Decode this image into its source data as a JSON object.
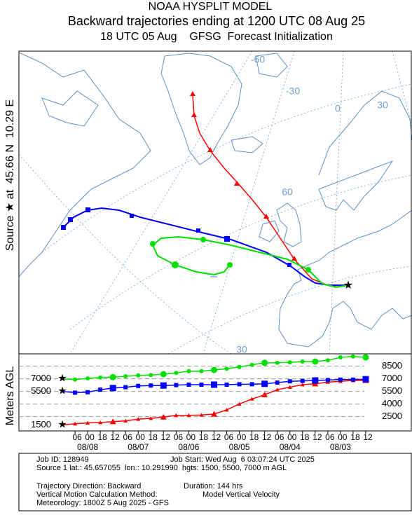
{
  "header": {
    "title1": "NOAA HYSPLIT MODEL",
    "title2": "Backward trajectories ending at 1200 UTC 08 Aug 25",
    "title3": "18 UTC 05 Aug    GFSG  Forecast Initialization"
  },
  "map": {
    "source_label": "Source ★ at  45.66 N  10.29 E",
    "grid_labels": [
      "-60",
      "-30",
      "0",
      "30",
      "60",
      "30"
    ]
  },
  "chart_data": {
    "type": "line",
    "ylabel": "Meters AGL",
    "x": [
      0,
      6,
      12,
      18,
      24,
      30,
      36,
      42,
      48,
      54,
      60,
      66,
      72,
      78,
      84,
      90,
      96,
      102,
      108,
      114,
      120,
      126,
      132,
      138,
      144
    ],
    "xlim": [
      -3,
      146
    ],
    "xticks": [
      {
        "value": 6,
        "label": "06"
      },
      {
        "value": 12,
        "label": "00"
      },
      {
        "value": 18,
        "label": "18"
      },
      {
        "value": 24,
        "label": "12"
      },
      {
        "value": 30,
        "label": "06"
      },
      {
        "value": 36,
        "label": "00"
      },
      {
        "value": 42,
        "label": "18"
      },
      {
        "value": 48,
        "label": "12"
      },
      {
        "value": 54,
        "label": "06"
      },
      {
        "value": 60,
        "label": "00"
      },
      {
        "value": 66,
        "label": "18"
      },
      {
        "value": 72,
        "label": "12"
      },
      {
        "value": 78,
        "label": "06"
      },
      {
        "value": 84,
        "label": "00"
      },
      {
        "value": 90,
        "label": "18"
      },
      {
        "value": 96,
        "label": "12"
      },
      {
        "value": 102,
        "label": "06"
      },
      {
        "value": 108,
        "label": "00"
      },
      {
        "value": 114,
        "label": "18"
      },
      {
        "value": 120,
        "label": "12"
      },
      {
        "value": 126,
        "label": "06"
      },
      {
        "value": 132,
        "label": "00"
      },
      {
        "value": 138,
        "label": "18"
      },
      {
        "value": 144,
        "label": "12"
      }
    ],
    "date_ticks": [
      {
        "value": 12,
        "label": "08/08"
      },
      {
        "value": 36,
        "label": "08/07"
      },
      {
        "value": 60,
        "label": "08/06"
      },
      {
        "value": 84,
        "label": "08/05"
      },
      {
        "value": 108,
        "label": "08/04"
      },
      {
        "value": 132,
        "label": "08/03"
      }
    ],
    "ylim": [
      800,
      9800
    ],
    "yticks": [
      2500,
      4000,
      5500,
      7000,
      8500
    ],
    "series": [
      {
        "color": "#ff0000",
        "marker": "triangle",
        "start_label": 1500,
        "values": [
          1500,
          1650,
          1750,
          1800,
          1900,
          2000,
          2200,
          2300,
          2450,
          2650,
          2650,
          2700,
          2800,
          3300,
          4000,
          4600,
          5100,
          5700,
          6000,
          6300,
          6400,
          6600,
          6700,
          6800,
          6800
        ]
      },
      {
        "color": "#0000ff",
        "marker": "square",
        "start_label": 5500,
        "values": [
          5500,
          5350,
          5400,
          5700,
          5900,
          6000,
          6150,
          6200,
          6200,
          6250,
          6300,
          6300,
          6300,
          6300,
          6350,
          6350,
          6400,
          6550,
          6700,
          6750,
          6800,
          6850,
          6900,
          6900,
          6950
        ]
      },
      {
        "color": "#00e000",
        "marker": "circle",
        "start_label": 7000,
        "values": [
          7000,
          6900,
          7050,
          7150,
          7200,
          7300,
          7400,
          7450,
          7550,
          7700,
          7900,
          7900,
          8050,
          8200,
          8400,
          8650,
          8900,
          8900,
          8950,
          9050,
          9050,
          9200,
          9550,
          9650,
          9550
        ]
      }
    ]
  },
  "footer": {
    "job_id": "Job ID: 128949",
    "job_start": "Job Start: Wed Aug  6 03:07:24 UTC 2025",
    "source": "Source 1 lat.: 45.657055  lon.: 10.291990  hgts: 1500, 5500, 7000 m AGL",
    "direction": "Trajectory Direction: Backward",
    "duration": "Duration: 144 hrs",
    "vertical": "Vertical Motion Calculation Method:",
    "vertical_value": "Model Vertical Velocity",
    "meteorology": "Meteorology: 1800Z 5 Aug 2025 - GFS"
  }
}
